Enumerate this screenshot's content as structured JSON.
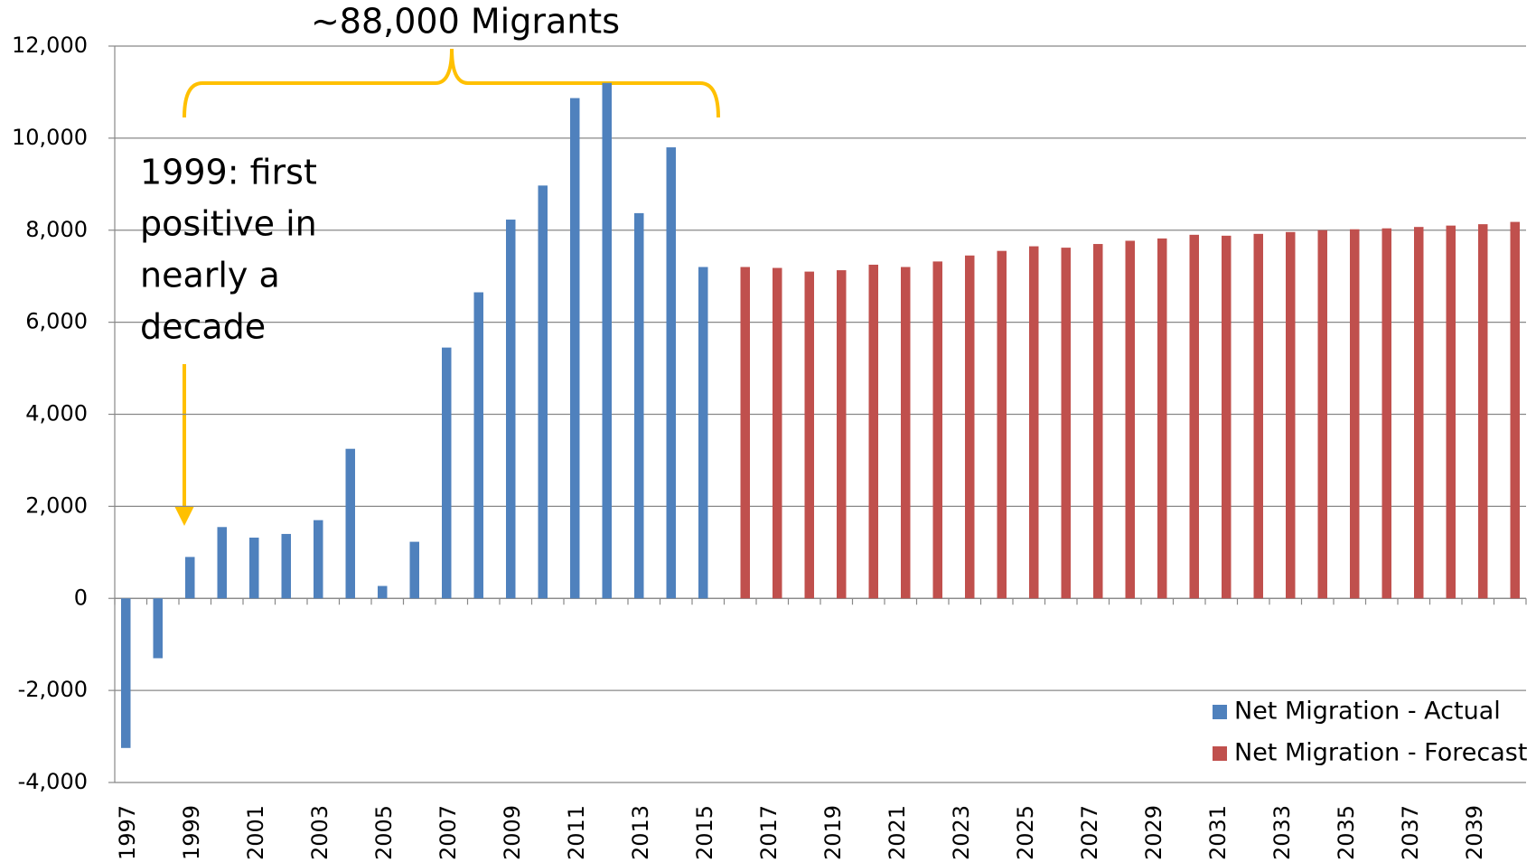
{
  "chart_data": {
    "type": "bar",
    "categories": [
      "1997",
      null,
      "1999",
      null,
      "2001",
      null,
      "2003",
      null,
      "2005",
      null,
      "2007",
      null,
      "2009",
      null,
      "2011",
      null,
      "2013",
      null,
      "2015",
      null,
      "2017",
      null,
      "2019",
      null,
      "2021",
      null,
      "2023",
      null,
      "2025",
      null,
      "2027",
      null,
      "2029",
      null,
      "2031",
      null,
      "2033",
      null,
      "2035",
      null,
      "2037",
      null,
      "2039",
      null
    ],
    "series": [
      {
        "name": "Net Migration - Actual",
        "color": "#4f81bd",
        "values": [
          -3250,
          -1300,
          900,
          1550,
          1320,
          1400,
          1700,
          3250,
          270,
          1230,
          5450,
          6650,
          8230,
          8970,
          10870,
          11200,
          8370,
          9800,
          7200,
          null,
          null,
          null,
          null,
          null,
          null,
          null,
          null,
          null,
          null,
          null,
          null,
          null,
          null,
          null,
          null,
          null,
          null,
          null,
          null,
          null,
          null,
          null,
          null,
          null
        ]
      },
      {
        "name": "Net Migration - Forecast",
        "color": "#c0504d",
        "values": [
          null,
          null,
          null,
          null,
          null,
          null,
          null,
          null,
          null,
          null,
          null,
          null,
          null,
          null,
          null,
          null,
          null,
          null,
          null,
          7200,
          7180,
          7100,
          7130,
          7250,
          7200,
          7320,
          7450,
          7550,
          7650,
          7620,
          7700,
          7770,
          7820,
          7900,
          7880,
          7920,
          7960,
          8000,
          8020,
          8040,
          8070,
          8100,
          8130,
          8180
        ]
      }
    ],
    "ylim": [
      -4000,
      12000
    ],
    "yticks": [
      {
        "value": -4000,
        "label": "-4,000"
      },
      {
        "value": -2000,
        "label": "-2,000"
      },
      0,
      {
        "value": 2000,
        "label": "2,000"
      },
      {
        "value": 4000,
        "label": "4,000"
      },
      {
        "value": 6000,
        "label": "6,000"
      },
      {
        "value": 8000,
        "label": "8,000"
      },
      {
        "value": 10000,
        "label": "10,000"
      },
      {
        "value": 12000,
        "label": "12,000"
      }
    ],
    "grid": true,
    "legend": "lower right",
    "annotations": [
      {
        "lines": [
          "~88,000 Migrants"
        ]
      },
      {
        "lines": [
          "1999: first",
          "positive in",
          "nearly a",
          "decade"
        ]
      }
    ]
  }
}
